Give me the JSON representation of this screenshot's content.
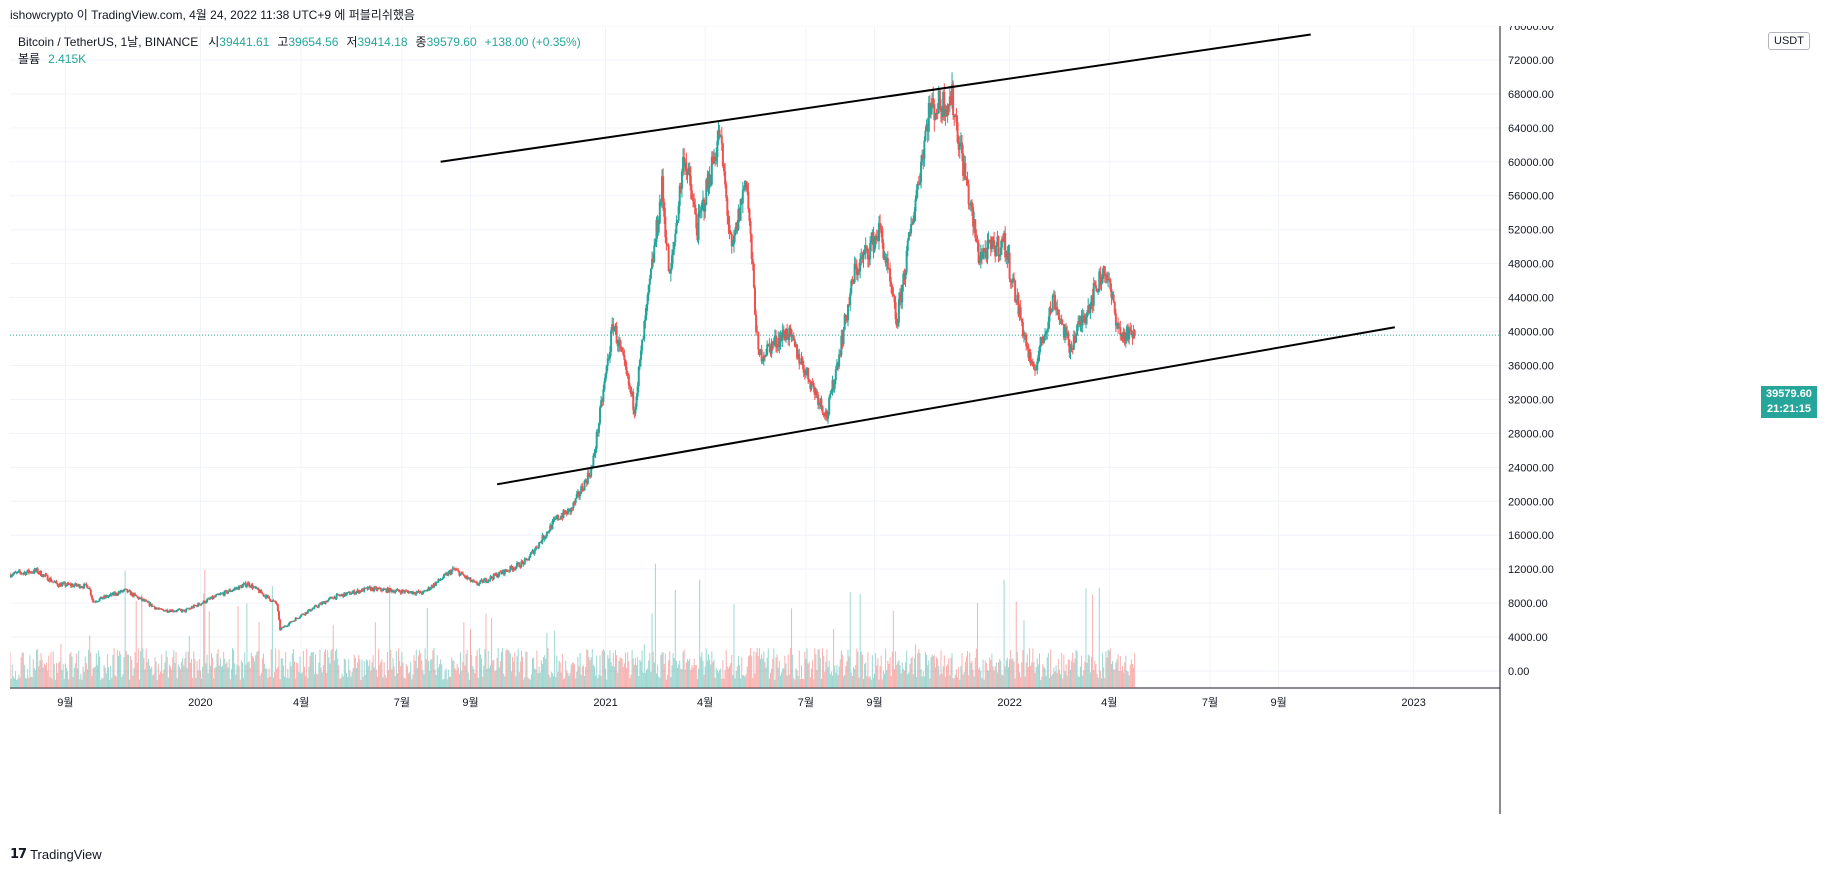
{
  "header": {
    "attribution": "ishowcrypto 이 TradingView.com, 4월 24, 2022 11:38 UTC+9 에 퍼블리쉬했음"
  },
  "legend": {
    "symbol": "Bitcoin / TetherUS, 1날, BINANCE",
    "open_label": "시",
    "open": "39441.61",
    "high_label": "고",
    "high": "39654.56",
    "low_label": "저",
    "low": "39414.18",
    "close_label": "종",
    "close": "39579.60",
    "change": "+138.00 (+0.35%)",
    "volume_label": "볼륨",
    "volume": "2.415K"
  },
  "axis": {
    "currency": "USDT",
    "last_price": "39579.60",
    "countdown": "21:21:15"
  },
  "footer": {
    "brand": "TradingView"
  },
  "colors": {
    "up": "#26a69a",
    "down": "#ef5350",
    "grid": "#f0f3fa",
    "trendline": "#000000"
  },
  "chart_data": {
    "type": "candlestick",
    "title": "Bitcoin / TetherUS, 1날, BINANCE",
    "y_axis": {
      "side": "right",
      "unit": "USDT",
      "range": [
        -2000,
        76000
      ],
      "ticks": [
        "0.00",
        "4000.00",
        "8000.00",
        "12000.00",
        "16000.00",
        "20000.00",
        "24000.00",
        "28000.00",
        "32000.00",
        "36000.00",
        "40000.00",
        "44000.00",
        "48000.00",
        "52000.00",
        "56000.00",
        "60000.00",
        "64000.00",
        "68000.00",
        "72000.00",
        "76000.00"
      ]
    },
    "x_axis": {
      "range": [
        "2019-07-13",
        "2023-03-20"
      ],
      "ticks": [
        {
          "date": "2019-09-01",
          "label": "9월"
        },
        {
          "date": "2020-01-01",
          "label": "2020"
        },
        {
          "date": "2020-04-01",
          "label": "4월"
        },
        {
          "date": "2020-07-01",
          "label": "7월"
        },
        {
          "date": "2020-09-01",
          "label": "9월"
        },
        {
          "date": "2021-01-01",
          "label": "2021"
        },
        {
          "date": "2021-04-01",
          "label": "4월"
        },
        {
          "date": "2021-07-01",
          "label": "7월"
        },
        {
          "date": "2021-09-01",
          "label": "9월"
        },
        {
          "date": "2022-01-01",
          "label": "2022"
        },
        {
          "date": "2022-04-01",
          "label": "4월"
        },
        {
          "date": "2022-07-01",
          "label": "7월"
        },
        {
          "date": "2022-09-01",
          "label": "9월"
        },
        {
          "date": "2023-01-01",
          "label": "2023"
        }
      ]
    },
    "price_anchors": [
      {
        "date": "2019-07-13",
        "close": 11400
      },
      {
        "date": "2019-08-06",
        "close": 11800
      },
      {
        "date": "2019-08-25",
        "close": 10200
      },
      {
        "date": "2019-09-22",
        "close": 10000
      },
      {
        "date": "2019-09-26",
        "close": 8200
      },
      {
        "date": "2019-10-25",
        "close": 9500
      },
      {
        "date": "2019-11-25",
        "close": 7200
      },
      {
        "date": "2019-12-18",
        "close": 7100
      },
      {
        "date": "2020-01-15",
        "close": 8800
      },
      {
        "date": "2020-02-13",
        "close": 10300
      },
      {
        "date": "2020-03-10",
        "close": 7900
      },
      {
        "date": "2020-03-13",
        "close": 4900
      },
      {
        "date": "2020-04-01",
        "close": 6600
      },
      {
        "date": "2020-04-30",
        "close": 8700
      },
      {
        "date": "2020-06-01",
        "close": 9700
      },
      {
        "date": "2020-07-20",
        "close": 9200
      },
      {
        "date": "2020-08-17",
        "close": 12000
      },
      {
        "date": "2020-09-06",
        "close": 10200
      },
      {
        "date": "2020-10-21",
        "close": 12900
      },
      {
        "date": "2020-11-18",
        "close": 18000
      },
      {
        "date": "2020-12-01",
        "close": 19000
      },
      {
        "date": "2020-12-20",
        "close": 24000
      },
      {
        "date": "2021-01-08",
        "close": 41000
      },
      {
        "date": "2021-01-27",
        "close": 31000
      },
      {
        "date": "2021-02-21",
        "close": 57000
      },
      {
        "date": "2021-02-28",
        "close": 46000
      },
      {
        "date": "2021-03-13",
        "close": 61000
      },
      {
        "date": "2021-03-25",
        "close": 52000
      },
      {
        "date": "2021-04-14",
        "close": 63500
      },
      {
        "date": "2021-04-25",
        "close": 49000
      },
      {
        "date": "2021-05-08",
        "close": 58500
      },
      {
        "date": "2021-05-19",
        "close": 37000
      },
      {
        "date": "2021-06-14",
        "close": 40000
      },
      {
        "date": "2021-07-20",
        "close": 30000
      },
      {
        "date": "2021-08-14",
        "close": 47000
      },
      {
        "date": "2021-09-06",
        "close": 52000
      },
      {
        "date": "2021-09-21",
        "close": 41000
      },
      {
        "date": "2021-10-20",
        "close": 66000
      },
      {
        "date": "2021-11-10",
        "close": 67500
      },
      {
        "date": "2021-12-04",
        "close": 49000
      },
      {
        "date": "2021-12-27",
        "close": 50500
      },
      {
        "date": "2022-01-22",
        "close": 35000
      },
      {
        "date": "2022-02-10",
        "close": 44000
      },
      {
        "date": "2022-02-24",
        "close": 38000
      },
      {
        "date": "2022-03-28",
        "close": 47500
      },
      {
        "date": "2022-04-11",
        "close": 39500
      },
      {
        "date": "2022-04-24",
        "close": 39579.6
      }
    ],
    "volume_note": "volume histogram drawn at bottom of price pane",
    "trendlines": [
      {
        "name": "upper",
        "start": {
          "date": "2020-08-05",
          "price": 60000
        },
        "end": {
          "date": "2022-09-30",
          "price": 75000
        }
      },
      {
        "name": "lower",
        "start": {
          "date": "2020-09-25",
          "price": 22000
        },
        "end": {
          "date": "2022-12-15",
          "price": 40500
        }
      }
    ],
    "last_price_line": 39579.6,
    "grid": true
  }
}
